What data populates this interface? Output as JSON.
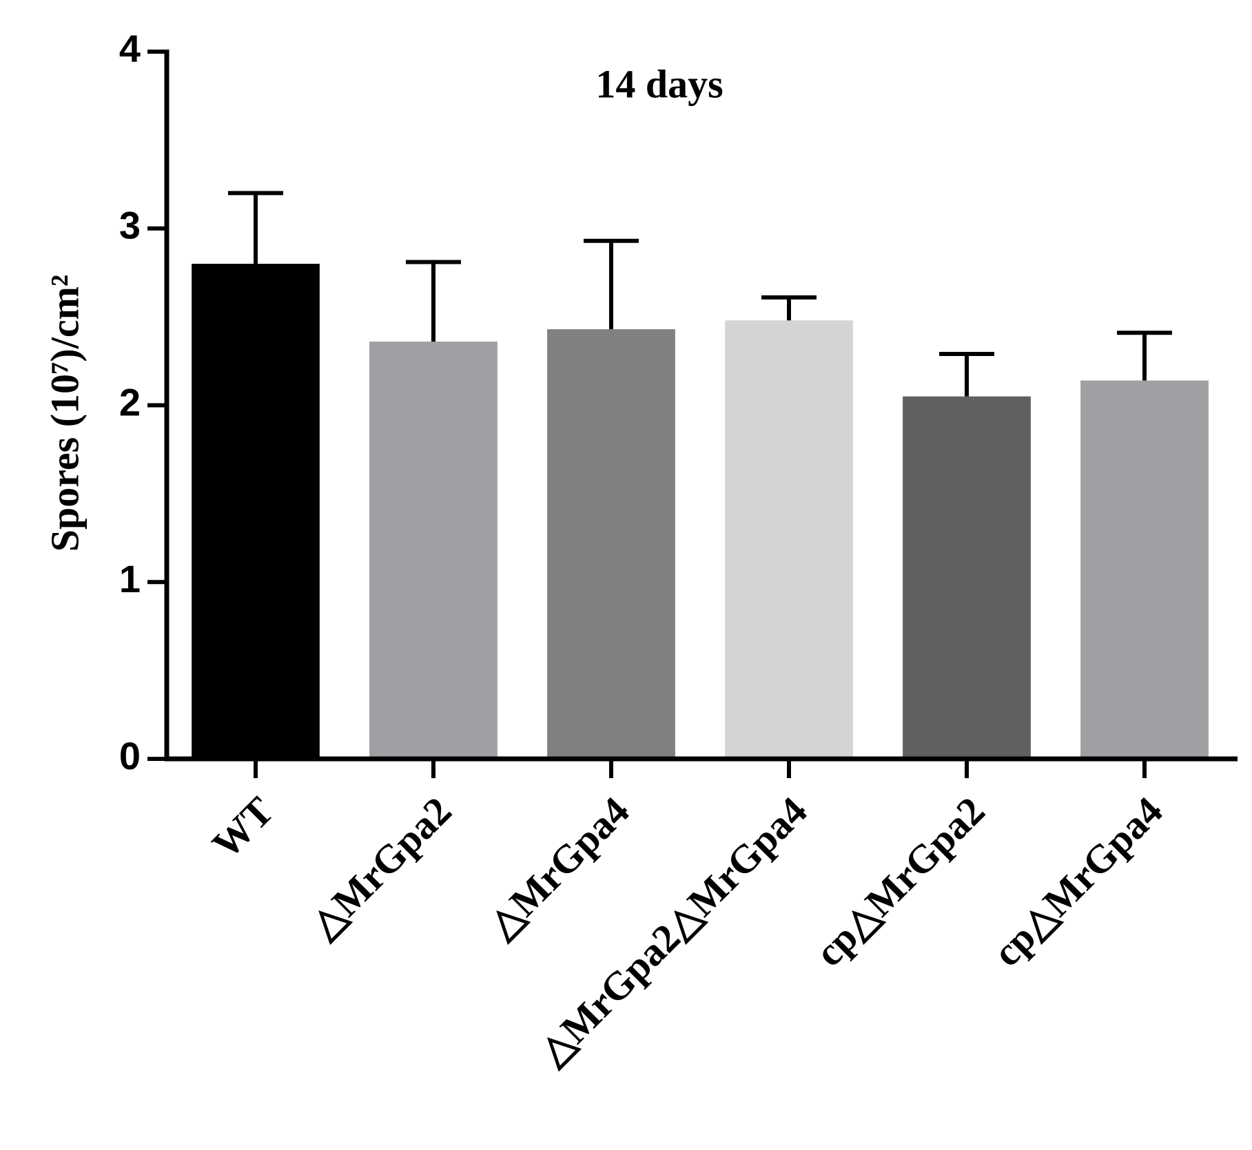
{
  "chart_data": {
    "type": "bar",
    "title": "14 days",
    "ylabel": "Spores (10⁷)/cm²",
    "categories": [
      "WT",
      "△MrGpa2",
      "△MrGpa4",
      "△MrGpa2△MrGpa4",
      "cp△MrGpa2",
      "cp△MrGpa4"
    ],
    "values": [
      2.8,
      2.36,
      2.43,
      2.48,
      2.05,
      2.14
    ],
    "errors": [
      0.4,
      0.45,
      0.5,
      0.13,
      0.24,
      0.27
    ],
    "colors": [
      "#000000",
      "#a0a0a4",
      "#808080",
      "#d4d4d4",
      "#606060",
      "#a0a0a4"
    ],
    "ylim": [
      0,
      4
    ],
    "yticks": [
      0,
      1,
      2,
      3,
      4
    ]
  }
}
